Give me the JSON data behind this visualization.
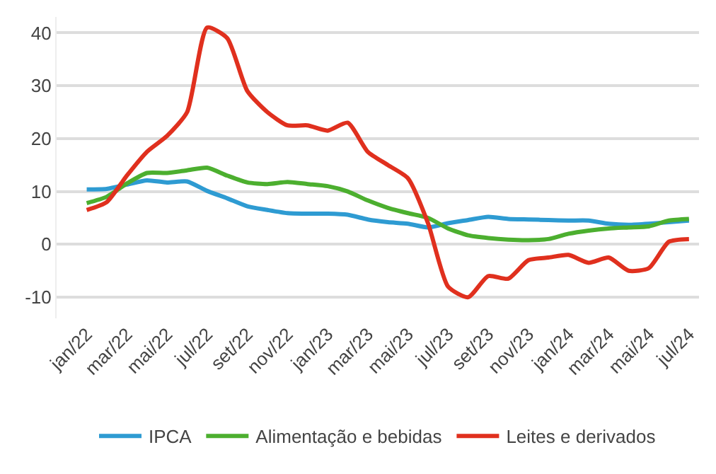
{
  "chart_data": {
    "type": "line",
    "categories": [
      "jan/22",
      null,
      "mar/22",
      null,
      "mai/22",
      null,
      "jul/22",
      null,
      "set/22",
      null,
      "nov/22",
      null,
      "jan/23",
      null,
      "mar/23",
      null,
      "mai/23",
      null,
      "jul/23",
      null,
      "set/23",
      null,
      "nov/23",
      null,
      "jan/24",
      null,
      "mar/24",
      null,
      "mai/24",
      null,
      "jul/24"
    ],
    "series": [
      {
        "name": "IPCA",
        "color": "#2e9bd2",
        "values": [
          10.4,
          10.5,
          11.3,
          12.1,
          11.7,
          11.9,
          10.1,
          8.7,
          7.2,
          6.5,
          5.9,
          5.8,
          5.8,
          5.6,
          4.7,
          4.2,
          3.9,
          3.2,
          4.0,
          4.6,
          5.2,
          4.8,
          4.7,
          4.6,
          4.5,
          4.5,
          3.9,
          3.7,
          3.9,
          4.2,
          4.5
        ]
      },
      {
        "name": "Alimentação e bebidas",
        "color": "#4caf2f",
        "values": [
          7.8,
          9,
          11.5,
          13.5,
          13.5,
          14,
          14.5,
          13,
          11.7,
          11.4,
          11.8,
          11.4,
          11,
          10,
          8.3,
          6.9,
          5.9,
          5,
          3.0,
          1.7,
          1.2,
          0.9,
          0.8,
          1,
          2,
          2.6,
          3,
          3.2,
          3.4,
          4.5,
          4.8
        ]
      },
      {
        "name": "Leites e derivados",
        "color": "#e0301e",
        "values": [
          6.5,
          8,
          13,
          17.5,
          20.5,
          25,
          41,
          39,
          29,
          25,
          22.5,
          22.5,
          21.5,
          23,
          17.5,
          15,
          12.5,
          4,
          -8,
          -10,
          -6,
          -6.5,
          -3,
          -2.5,
          -2,
          -3.5,
          -2.5,
          -5,
          -4.5,
          0.5,
          1
        ]
      }
    ],
    "ylim": [
      -14,
      43
    ],
    "yticks": [
      -10,
      0,
      10,
      20,
      30,
      40
    ],
    "grid": "y",
    "legend": "bottom",
    "marker": "none",
    "line_style": "solid"
  }
}
